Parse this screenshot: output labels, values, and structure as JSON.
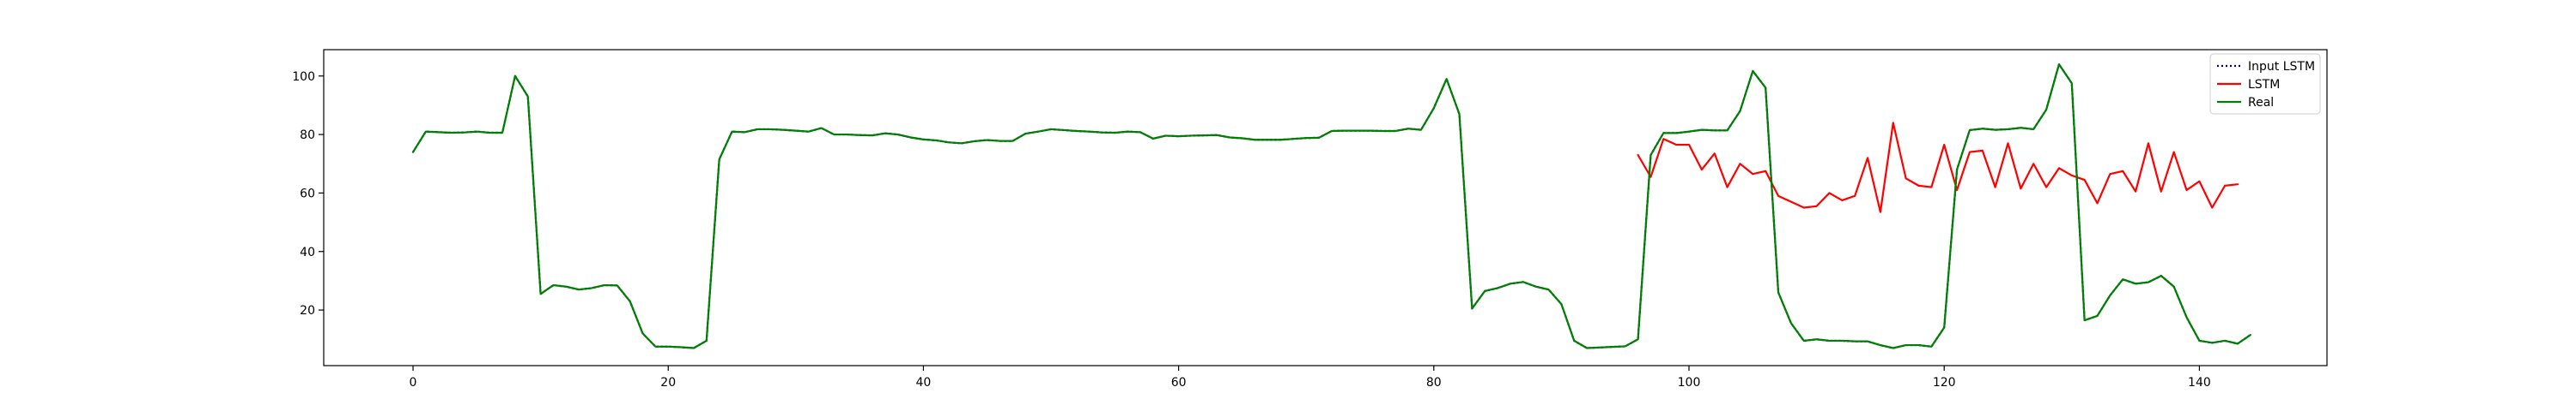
{
  "chart_data": {
    "type": "line",
    "title": "",
    "xlabel": "",
    "ylabel": "",
    "xlim": [
      -7,
      150
    ],
    "ylim": [
      1,
      109
    ],
    "xticks": [
      0,
      20,
      40,
      60,
      80,
      100,
      120,
      140
    ],
    "yticks": [
      20,
      40,
      60,
      80,
      100
    ],
    "grid": false,
    "legend": {
      "placement": "top-right",
      "entries": [
        {
          "label": "Input LSTM",
          "style": "dotted",
          "color": "#00008b"
        },
        {
          "label": "LSTM",
          "style": "solid",
          "color": "#ff0000"
        },
        {
          "label": "Real",
          "style": "solid",
          "color": "#008000"
        }
      ]
    },
    "series": [
      {
        "name": "Input LSTM",
        "color": "#00008b",
        "style": "dotted",
        "x_start": 0,
        "values": [
          74,
          81,
          80.8,
          80.6,
          80.7,
          81,
          80.6,
          80.6,
          100,
          93,
          25.5,
          28.5,
          28,
          27,
          27.5,
          28.5,
          28.4,
          23,
          12,
          7.5,
          7.5,
          7.3,
          7,
          9.5,
          71.5,
          81,
          80.8,
          81.8,
          81.8,
          81.6,
          81.3,
          81,
          82.2,
          80,
          80,
          79.8,
          79.7,
          80.4,
          80,
          79,
          78.3,
          78,
          77.3,
          77,
          77.7,
          78.1,
          77.8,
          77.8,
          80.3,
          81,
          81.8,
          81.5,
          81.2,
          81,
          80.7,
          80.6,
          81,
          80.8,
          78.6,
          79.6,
          79.4,
          79.6,
          79.7,
          79.8,
          79,
          78.7,
          78.2,
          78.2,
          78.2,
          78.5,
          78.8,
          78.9,
          81.2,
          81.3,
          81.3,
          81.3,
          81.2,
          81.2,
          82,
          81.6,
          89,
          99,
          87,
          20.5,
          26.5,
          27.5,
          29,
          29.6,
          28,
          27,
          22,
          9.5,
          7,
          7.2,
          7.4,
          7.6,
          10,
          73,
          80.5,
          80.5,
          81,
          81.6,
          81.4,
          81.4,
          88,
          101.7,
          96,
          26,
          15.5,
          9.5,
          10,
          9.5,
          9.5,
          9.3,
          9.3,
          8,
          7,
          8,
          8,
          7.5,
          14,
          68,
          81.5,
          82,
          81.6,
          81.8,
          82.3,
          81.8,
          88.5,
          104,
          97.5,
          16.5,
          18,
          25,
          30.5,
          29,
          29.5,
          31.7,
          28,
          17.5,
          9.5,
          8.8,
          9.5,
          8.5,
          11.5
        ]
      },
      {
        "name": "LSTM",
        "color": "#ff0000",
        "style": "solid",
        "x_start": 96,
        "values": [
          73,
          65.5,
          78.5,
          76.5,
          76.5,
          68,
          73.5,
          62,
          70,
          66.5,
          67.5,
          59,
          57,
          55,
          55.5,
          60,
          57.5,
          59,
          72,
          53.5,
          84,
          65,
          62.5,
          62,
          76.5,
          61,
          74,
          74.5,
          62,
          77,
          61.5,
          70,
          62,
          68.5,
          66,
          64.5,
          56.5,
          66.5,
          67.5,
          60.5,
          77,
          60.5,
          74,
          61,
          64,
          55,
          62.5,
          63
        ]
      },
      {
        "name": "Real",
        "color": "#008000",
        "style": "solid",
        "x_start": 0,
        "values": [
          74,
          81,
          80.8,
          80.6,
          80.7,
          81,
          80.6,
          80.6,
          100,
          93,
          25.5,
          28.5,
          28,
          27,
          27.5,
          28.5,
          28.4,
          23,
          12,
          7.5,
          7.5,
          7.3,
          7,
          9.5,
          71.5,
          81,
          80.8,
          81.8,
          81.8,
          81.6,
          81.3,
          81,
          82.2,
          80,
          80,
          79.8,
          79.7,
          80.4,
          80,
          79,
          78.3,
          78,
          77.3,
          77,
          77.7,
          78.1,
          77.8,
          77.8,
          80.3,
          81,
          81.8,
          81.5,
          81.2,
          81,
          80.7,
          80.6,
          81,
          80.8,
          78.6,
          79.6,
          79.4,
          79.6,
          79.7,
          79.8,
          79,
          78.7,
          78.2,
          78.2,
          78.2,
          78.5,
          78.8,
          78.9,
          81.2,
          81.3,
          81.3,
          81.3,
          81.2,
          81.2,
          82,
          81.6,
          89,
          99,
          87,
          20.5,
          26.5,
          27.5,
          29,
          29.6,
          28,
          27,
          22,
          9.5,
          7,
          7.2,
          7.4,
          7.6,
          10,
          73,
          80.5,
          80.5,
          81,
          81.6,
          81.4,
          81.4,
          88,
          101.7,
          96,
          26,
          15.5,
          9.5,
          10,
          9.5,
          9.5,
          9.3,
          9.3,
          8,
          7,
          8,
          8,
          7.5,
          14,
          68,
          81.5,
          82,
          81.6,
          81.8,
          82.3,
          81.8,
          88.5,
          104,
          97.5,
          16.5,
          18,
          25,
          30.5,
          29,
          29.5,
          31.7,
          28,
          17.5,
          9.5,
          8.8,
          9.5,
          8.5,
          11.5
        ]
      }
    ]
  }
}
